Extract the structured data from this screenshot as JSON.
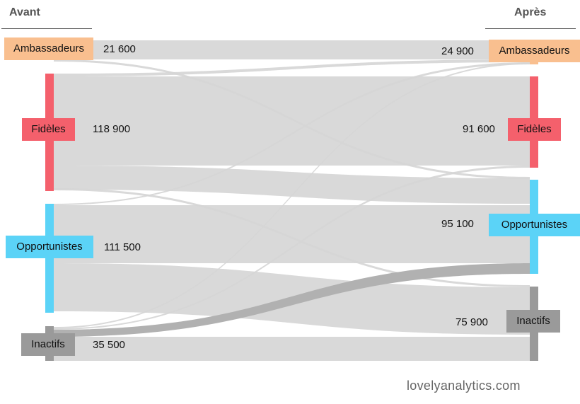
{
  "headers": {
    "left": "Avant",
    "right": "Après"
  },
  "watermark": "lovelyanalytics.com",
  "colors": {
    "Ambassadeurs": "#f9bf8f",
    "Fidèles": "#f4606c",
    "Opportunistes": "#5bd3f7",
    "Inactifs": "#9a9a9a",
    "flow": "#d6d6d6",
    "flow_inactifs_to_opportunistes": "#b1b1b1"
  },
  "nodes": {
    "left": [
      {
        "id": "ambassadeurs_avant",
        "label": "Ambassadeurs",
        "value_text": "21 600"
      },
      {
        "id": "fideles_avant",
        "label": "Fidèles",
        "value_text": "118 900"
      },
      {
        "id": "opportunistes_avant",
        "label": "Opportunistes",
        "value_text": "111 500"
      },
      {
        "id": "inactifs_avant",
        "label": "Inactifs",
        "value_text": "35 500"
      }
    ],
    "right": [
      {
        "id": "ambassadeurs_apres",
        "label": "Ambassadeurs",
        "value_text": "24 900"
      },
      {
        "id": "fideles_apres",
        "label": "Fidèles",
        "value_text": "91 600"
      },
      {
        "id": "opportunistes_apres",
        "label": "Opportunistes",
        "value_text": "95 100"
      },
      {
        "id": "inactifs_apres",
        "label": "Inactifs",
        "value_text": "75 900"
      }
    ]
  }
}
